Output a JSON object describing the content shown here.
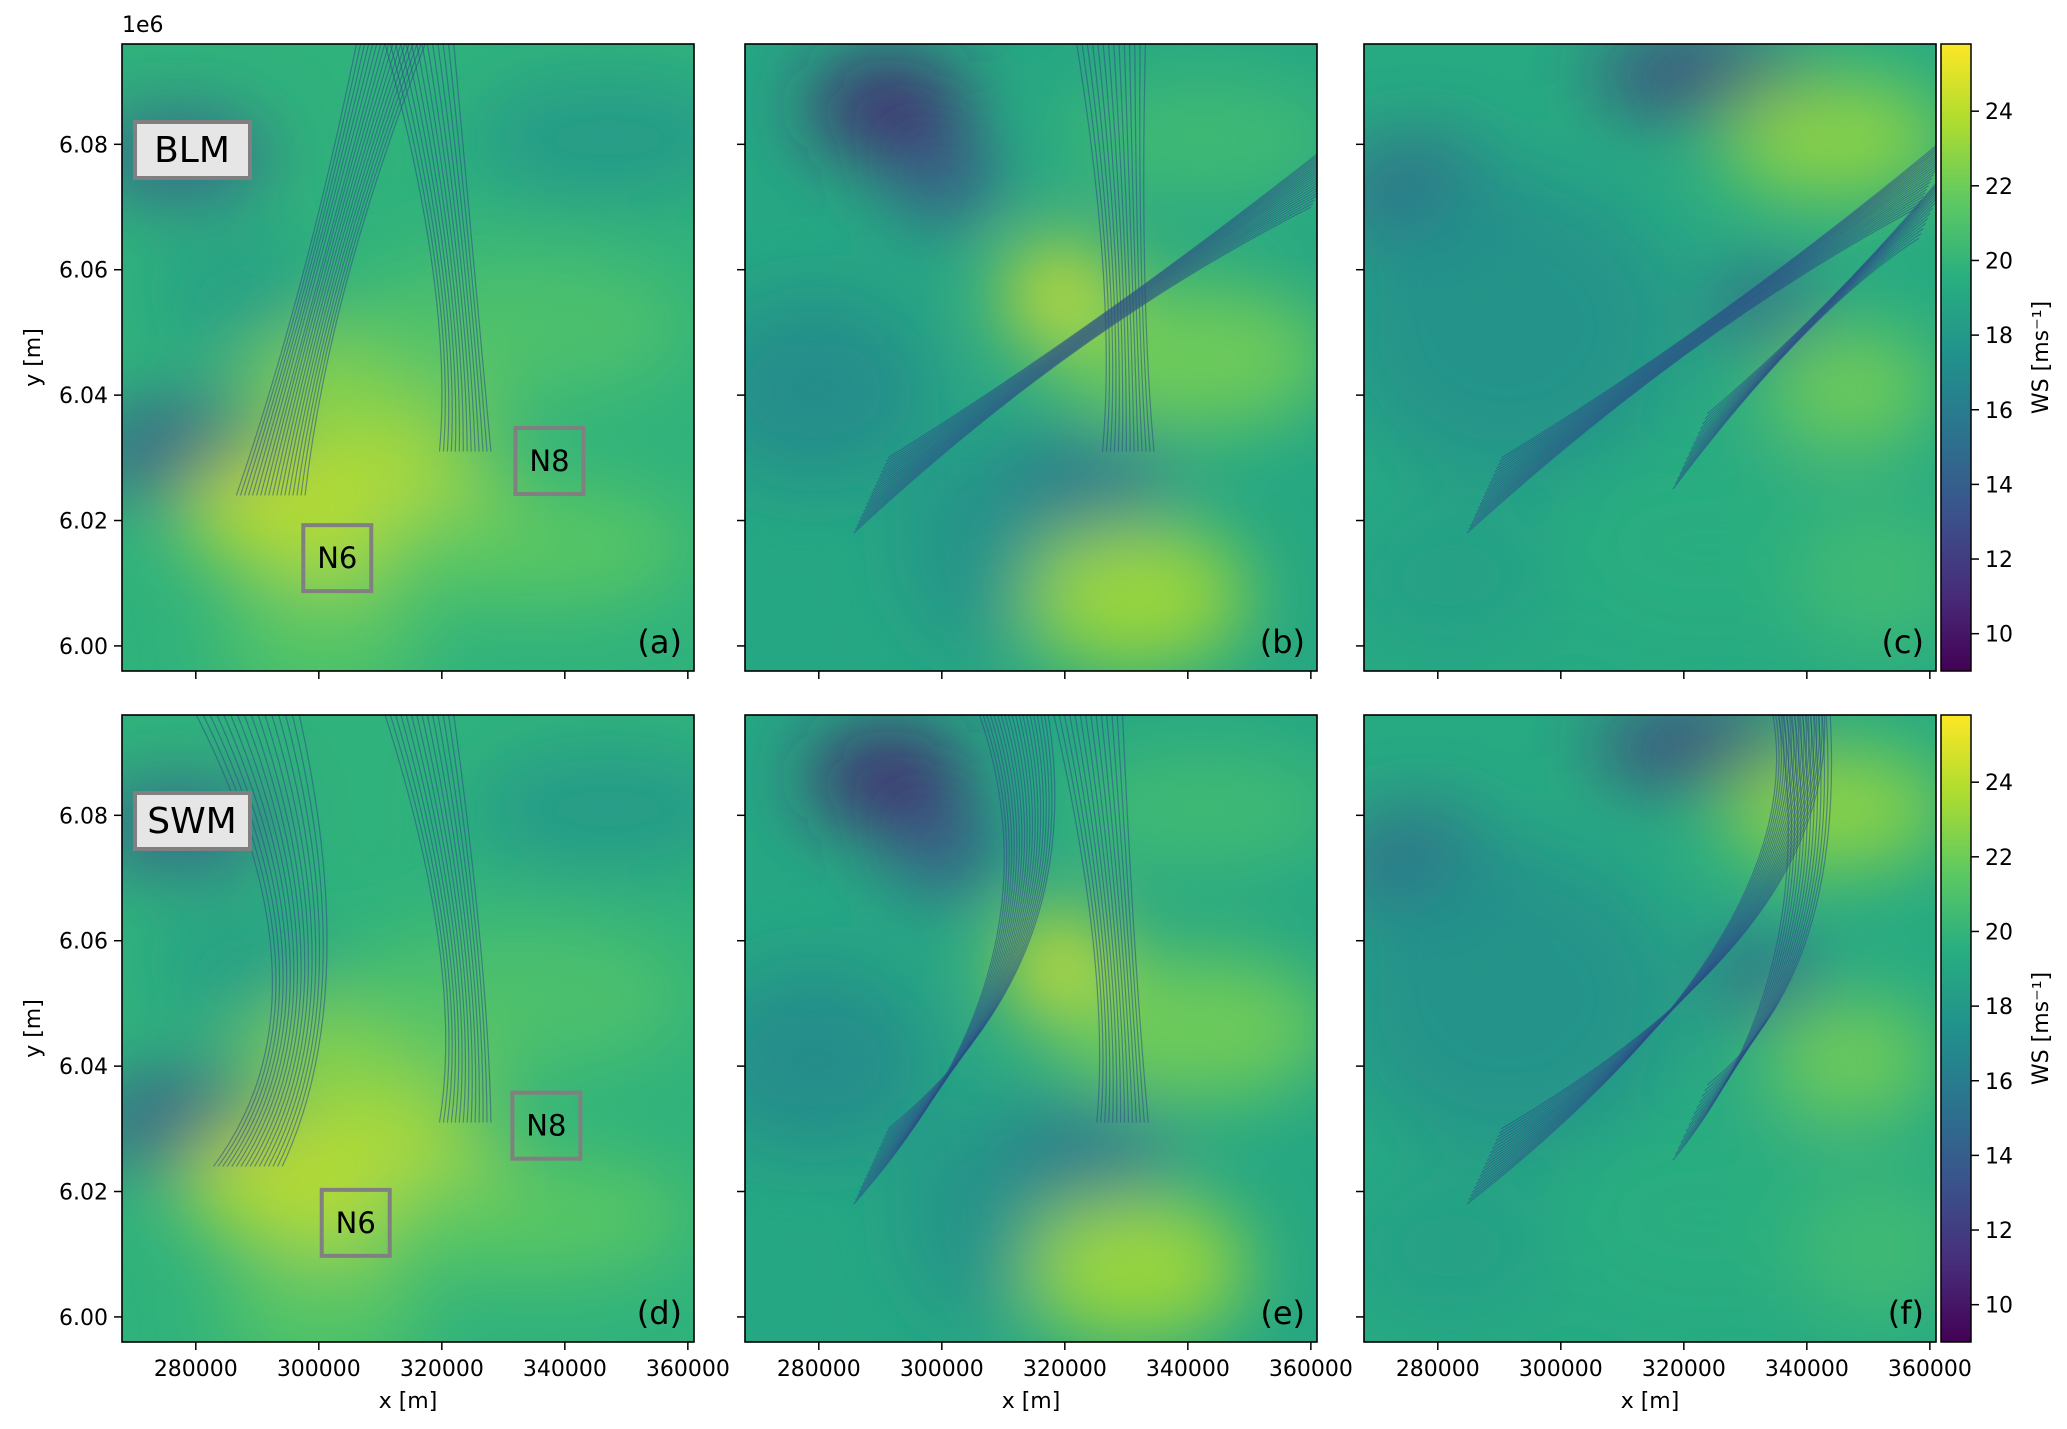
{
  "chart_data": {
    "type": "heatmap",
    "variable": "WS",
    "x_axis": {
      "label": "x [m]",
      "lim": [
        268000,
        361000
      ],
      "ticks": [
        280000,
        300000,
        320000,
        340000,
        360000
      ],
      "tick_labels": [
        "280000",
        "300000",
        "320000",
        "340000",
        "360000"
      ]
    },
    "y_axis": {
      "label": "y [m]",
      "lim": [
        5996000,
        6096000
      ],
      "ticks": [
        6000000,
        6020000,
        6040000,
        6060000,
        6080000
      ],
      "tick_labels": [
        "6.00",
        "6.02",
        "6.04",
        "6.06",
        "6.08"
      ],
      "offset_text": "1e6"
    },
    "colorbar": {
      "label": "WS [ms⁻¹]",
      "min": 9,
      "max": 25.8,
      "ticks": [
        10,
        12,
        14,
        16,
        18,
        20,
        22,
        24
      ],
      "tick_labels": [
        "10",
        "12",
        "14",
        "16",
        "18",
        "20",
        "22",
        "24"
      ],
      "colormap": "viridis"
    },
    "colormap_stops": [
      "#440154",
      "#472d7b",
      "#3b528b",
      "#2c728e",
      "#21918c",
      "#28ae80",
      "#5ec962",
      "#addc30",
      "#fde725"
    ],
    "rows": [
      {
        "scheme_label": "BLM",
        "panels": [
          "(a)",
          "(b)",
          "(c)"
        ]
      },
      {
        "scheme_label": "SWM",
        "panels": [
          "(d)",
          "(e)",
          "(f)"
        ]
      }
    ],
    "farm_labels": [
      "N6",
      "N8"
    ],
    "grid": false
  }
}
